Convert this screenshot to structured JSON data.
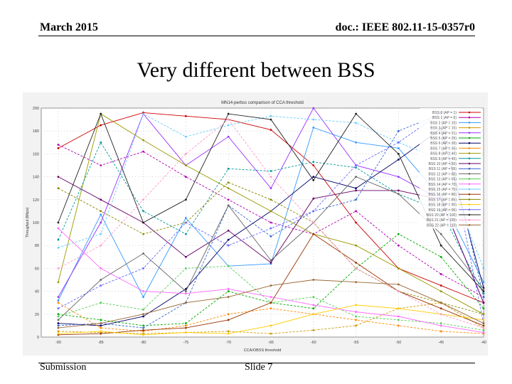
{
  "header": {
    "left": "March 2015",
    "right": "doc.: IEEE 802.11-15-0357r0"
  },
  "slide": {
    "title": "Very different between BSS"
  },
  "footer": {
    "left": "Submission",
    "center": "Slide 7"
  },
  "chart_data": {
    "type": "line",
    "title": "MN14-perbss comparison of CCA threshold",
    "xlabel": "CCA/OBSS threshold",
    "ylabel": "Throughput (Mbps)",
    "x": [
      -90,
      -85,
      -80,
      -75,
      -70,
      -65,
      -60,
      -55,
      -50,
      -45,
      -40
    ],
    "xlim": [
      -92,
      -40
    ],
    "ylim": [
      0,
      200
    ],
    "yticks": [
      0,
      20,
      40,
      60,
      80,
      100,
      120,
      140,
      160,
      180,
      200
    ],
    "grid": true,
    "legend_position": "top-right",
    "series": [
      {
        "name": "BSS 0 (AP = 1)",
        "color": "#cc0000",
        "values": [
          165,
          185,
          196,
          193,
          190,
          181,
          150,
          100,
          60,
          45,
          30
        ]
      },
      {
        "name": "BSS 1 (AP = 6)",
        "color": "#b000b0",
        "values": [
          168,
          150,
          162,
          140,
          120,
          100,
          90,
          110,
          80,
          55,
          35
        ]
      },
      {
        "name": "BSS 2 (AP = 10)",
        "color": "#3399ff",
        "values": [
          32,
          107,
          35,
          104,
          62,
          64,
          183,
          170,
          165,
          122,
          48
        ]
      },
      {
        "name": "BSS 3 (AP = 15)",
        "color": "#cc9900",
        "values": [
          5,
          4,
          3,
          4,
          5,
          3,
          6,
          10,
          25,
          30,
          8
        ]
      },
      {
        "name": "BSS 4 (AP = 21)",
        "color": "#9933ff",
        "values": [
          35,
          100,
          195,
          150,
          175,
          130,
          200,
          150,
          140,
          120,
          30
        ]
      },
      {
        "name": "BSS 5 (AP = 25)",
        "color": "#00aa00",
        "values": [
          20,
          15,
          10,
          12,
          40,
          30,
          25,
          60,
          90,
          70,
          25
        ]
      },
      {
        "name": "BSS 6 (AP = 30)",
        "color": "#000066",
        "values": [
          12,
          10,
          18,
          42,
          85,
          110,
          140,
          130,
          155,
          182,
          43
        ]
      },
      {
        "name": "BSS 7 (AP = 35)",
        "color": "#ff8800",
        "values": [
          30,
          8,
          5,
          10,
          20,
          25,
          20,
          15,
          10,
          5,
          3
        ]
      },
      {
        "name": "BSS 8 (AP = 40)",
        "color": "#999900",
        "values": [
          48,
          195,
          172,
          150,
          130,
          110,
          90,
          80,
          60,
          40,
          20
        ]
      },
      {
        "name": "BSS 9 (AP = 45)",
        "color": "#009999",
        "values": [
          85,
          170,
          110,
          90,
          147,
          145,
          153,
          148,
          125,
          110,
          38
        ]
      },
      {
        "name": "BSS 10 (AP = 50)",
        "color": "#660066",
        "values": [
          140,
          120,
          100,
          70,
          93,
          65,
          121,
          128,
          128,
          120,
          30
        ]
      },
      {
        "name": "BSS 11 (AP = 55)",
        "color": "#3366cc",
        "values": [
          10,
          12,
          8,
          30,
          115,
          88,
          110,
          120,
          180,
          195,
          35
        ]
      },
      {
        "name": "BSS 12 (AP = 60)",
        "color": "#666666",
        "values": [
          15,
          50,
          73,
          40,
          115,
          67,
          100,
          140,
          125,
          90,
          42
        ]
      },
      {
        "name": "BSS 13 (AP = 65)",
        "color": "#55cc55",
        "values": [
          18,
          30,
          24,
          60,
          62,
          30,
          35,
          18,
          15,
          12,
          6
        ]
      },
      {
        "name": "BSS 14 (AP = 70)",
        "color": "#ff66ff",
        "values": [
          95,
          60,
          40,
          38,
          42,
          35,
          28,
          22,
          18,
          10,
          4
        ]
      },
      {
        "name": "BSS 15 (AP = 75)",
        "color": "#66ccff",
        "values": [
          78,
          90,
          195,
          175,
          185,
          193,
          190,
          187,
          170,
          155,
          60
        ]
      },
      {
        "name": "BSS 16 (AP = 80)",
        "color": "#993300",
        "values": [
          2,
          3,
          6,
          8,
          15,
          30,
          90,
          65,
          40,
          25,
          10
        ]
      },
      {
        "name": "BSS 17 (AP = 85)",
        "color": "#888800",
        "values": [
          130,
          110,
          90,
          100,
          135,
          120,
          100,
          60,
          40,
          30,
          20
        ]
      },
      {
        "name": "BSS 18 (AP = 90)",
        "color": "#ffcc00",
        "values": [
          3,
          5,
          2,
          4,
          3,
          10,
          20,
          28,
          25,
          20,
          15
        ]
      },
      {
        "name": "BSS 19 (AP = 95)",
        "color": "#6666ff",
        "values": [
          25,
          45,
          60,
          100,
          80,
          95,
          110,
          150,
          170,
          196,
          12
        ]
      },
      {
        "name": "BSS 20 (AP = 100)",
        "color": "#222222",
        "values": [
          100,
          195,
          100,
          120,
          195,
          190,
          137,
          195,
          160,
          80,
          40
        ]
      },
      {
        "name": "BSS 21 (AP = 105)",
        "color": "#ff99cc",
        "values": [
          60,
          80,
          120,
          160,
          190,
          140,
          100,
          60,
          40,
          20,
          8
        ]
      },
      {
        "name": "BSS 22 (AP = 110)",
        "color": "#996633",
        "values": [
          8,
          12,
          20,
          30,
          35,
          45,
          50,
          48,
          46,
          30,
          12
        ]
      }
    ]
  }
}
